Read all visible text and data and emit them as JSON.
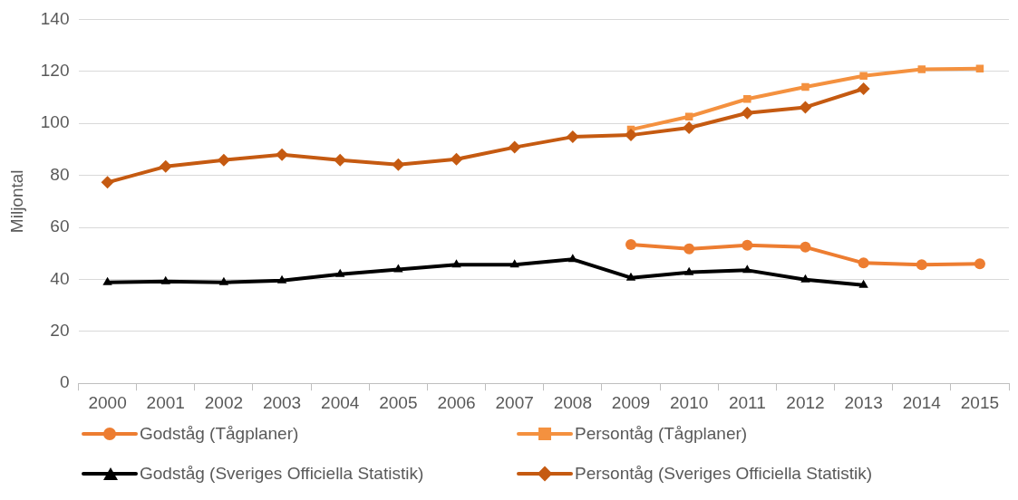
{
  "chart_data": {
    "type": "line",
    "ylabel": "Miljontal",
    "categories": [
      "2000",
      "2001",
      "2002",
      "2003",
      "2004",
      "2005",
      "2006",
      "2007",
      "2008",
      "2009",
      "2010",
      "2011",
      "2012",
      "2013",
      "2014",
      "2015"
    ],
    "series": [
      {
        "name": "Godståg (Tågplaner)",
        "color": "#ed7d31",
        "marker": "circle",
        "values": [
          null,
          null,
          null,
          null,
          null,
          null,
          null,
          null,
          null,
          53.4,
          51.7,
          53.1,
          52.4,
          46.3,
          45.6,
          46
        ]
      },
      {
        "name": "Persontåg (Tågplaner)",
        "color": "#f4913f",
        "marker": "square",
        "values": [
          null,
          null,
          null,
          null,
          null,
          null,
          null,
          null,
          null,
          97.6,
          102.6,
          109.4,
          114,
          118.3,
          120.8,
          121.1
        ]
      },
      {
        "name": "Godståg (Sveriges Officiella Statistik)",
        "color": "#000000",
        "marker": "triangle",
        "values": [
          38.8,
          39.2,
          38.8,
          39.5,
          42,
          43.8,
          45.6,
          45.6,
          47.7,
          40.6,
          42.7,
          43.5,
          39.9,
          37.8,
          null,
          null
        ]
      },
      {
        "name": "Persontåg (Sveriges Officiella Statistik)",
        "color": "#c55a11",
        "marker": "diamond",
        "values": [
          77.3,
          83.4,
          85.9,
          88,
          85.9,
          84.1,
          86.2,
          90.8,
          94.8,
          95.5,
          98.3,
          104,
          106.2,
          113.3,
          null,
          null
        ]
      }
    ],
    "ylim": [
      0,
      140
    ],
    "yticks": [
      0,
      20,
      40,
      60,
      80,
      100,
      120,
      140
    ],
    "grid": "y",
    "legend": "bottom",
    "line_style": "solid"
  }
}
